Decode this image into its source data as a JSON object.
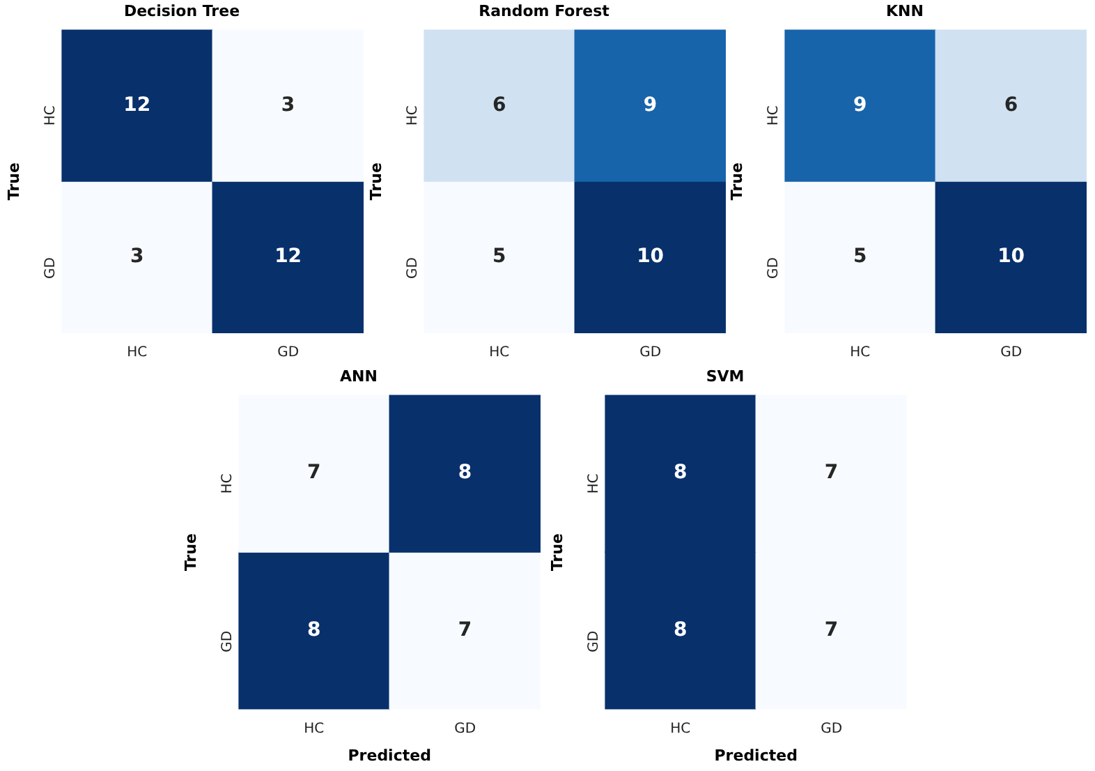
{
  "chart_data": [
    {
      "type": "heatmap",
      "title": "Decision Tree",
      "ylabel": "True",
      "categories": [
        "HC",
        "GD"
      ],
      "y_categories": [
        "HC",
        "GD"
      ],
      "cells": [
        [
          12,
          3
        ],
        [
          3,
          12
        ]
      ],
      "data_labels": true
    },
    {
      "type": "heatmap",
      "title": "Random Forest",
      "ylabel": "True",
      "categories": [
        "HC",
        "GD"
      ],
      "y_categories": [
        "HC",
        "GD"
      ],
      "cells": [
        [
          6,
          9
        ],
        [
          5,
          10
        ]
      ],
      "data_labels": true
    },
    {
      "type": "heatmap",
      "title": "KNN",
      "ylabel": "True",
      "categories": [
        "HC",
        "GD"
      ],
      "y_categories": [
        "HC",
        "GD"
      ],
      "cells": [
        [
          9,
          6
        ],
        [
          5,
          10
        ]
      ],
      "data_labels": true
    },
    {
      "type": "heatmap",
      "title": "ANN",
      "ylabel": "True",
      "xlabel": "Predicted",
      "categories": [
        "HC",
        "GD"
      ],
      "y_categories": [
        "HC",
        "GD"
      ],
      "cells": [
        [
          7,
          8
        ],
        [
          8,
          7
        ]
      ],
      "data_labels": true
    },
    {
      "type": "heatmap",
      "title": "SVM",
      "ylabel": "True",
      "xlabel": "Predicted",
      "categories": [
        "HC",
        "GD"
      ],
      "y_categories": [
        "HC",
        "GD"
      ],
      "cells": [
        [
          8,
          7
        ],
        [
          8,
          7
        ]
      ],
      "data_labels": true
    }
  ]
}
